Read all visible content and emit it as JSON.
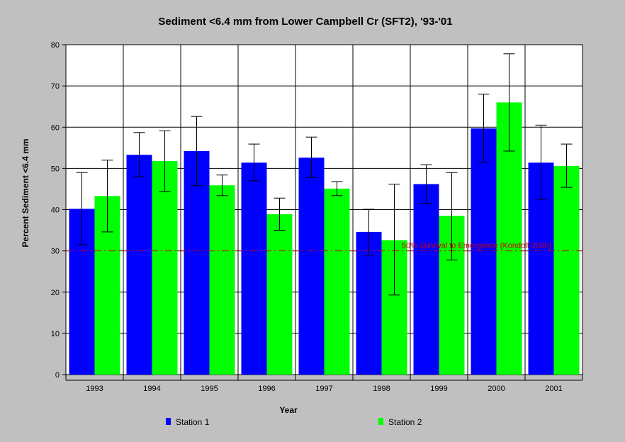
{
  "chart_data": {
    "type": "bar",
    "title": "Sediment <6.4 mm from Lower Campbell Cr (SFT2), '93-'01",
    "xlabel": "Year",
    "ylabel": "Percent Sediment <6.4 mm",
    "ylim": [
      0,
      80
    ],
    "yticks": [
      0,
      10,
      20,
      30,
      40,
      50,
      60,
      70,
      80
    ],
    "grid": true,
    "legend_position": "bottom",
    "categories": [
      "1993",
      "1994",
      "1995",
      "1996",
      "1997",
      "1998",
      "1999",
      "2000",
      "2001"
    ],
    "series": [
      {
        "name": "Station 1",
        "color": "#0000ff",
        "values": [
          40.2,
          53.3,
          54.2,
          51.4,
          52.6,
          34.6,
          46.2,
          59.7,
          51.4
        ],
        "error_low": [
          31.5,
          48.0,
          45.8,
          47.0,
          47.8,
          29.0,
          41.5,
          51.5,
          42.5
        ],
        "error_high": [
          49.0,
          58.7,
          62.6,
          55.9,
          57.6,
          40.1,
          50.9,
          68.0,
          60.5
        ]
      },
      {
        "name": "Station 2",
        "color": "#00ff00",
        "values": [
          43.3,
          51.8,
          45.9,
          38.9,
          45.1,
          32.6,
          38.5,
          66.0,
          50.6
        ],
        "error_low": [
          34.6,
          44.4,
          43.4,
          35.0,
          43.4,
          19.3,
          27.8,
          54.2,
          45.4
        ],
        "error_high": [
          52.0,
          59.1,
          48.4,
          42.8,
          46.8,
          46.2,
          49.0,
          77.8,
          55.9
        ]
      }
    ],
    "reference_line": {
      "value": 30,
      "label": "50% Survival to Emergence (Kondolf 2000)",
      "color": "#cc0000"
    }
  }
}
